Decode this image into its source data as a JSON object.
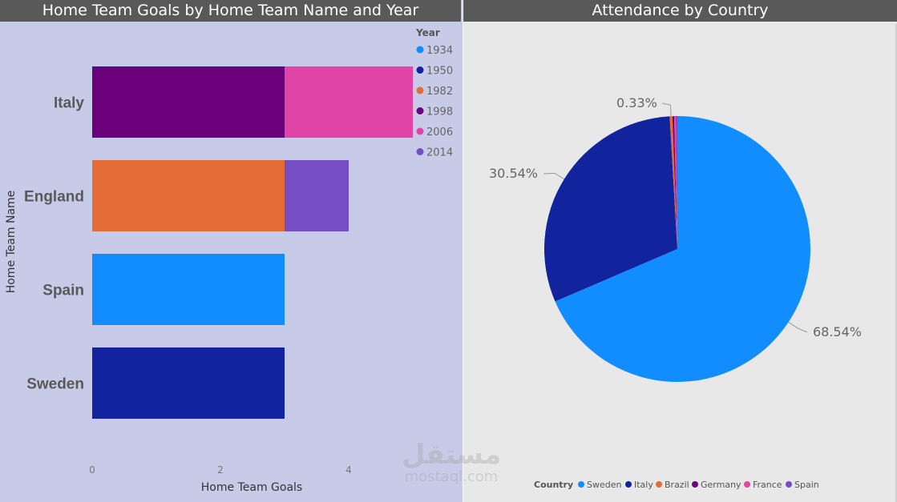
{
  "chart_data": [
    {
      "type": "bar",
      "orientation": "horizontal",
      "stacked": true,
      "title": "Home Team Goals by Home Team Name and Year",
      "xlabel": "Home Team Goals",
      "ylabel": "Home Team Name",
      "categories": [
        "Italy",
        "England",
        "Spain",
        "Sweden"
      ],
      "x_ticks": [
        "0",
        "2",
        "4"
      ],
      "xlim": [
        0,
        5.1
      ],
      "legend_title": "Year",
      "legend_position": "top-right",
      "series": [
        {
          "name": "1934",
          "color": "#118dff",
          "values": [
            0,
            0,
            3,
            0
          ]
        },
        {
          "name": "1950",
          "color": "#12239e",
          "values": [
            0,
            0,
            0,
            3
          ]
        },
        {
          "name": "1982",
          "color": "#e66c37",
          "values": [
            0,
            3,
            0,
            0
          ]
        },
        {
          "name": "1998",
          "color": "#6b007b",
          "values": [
            3,
            0,
            0,
            0
          ]
        },
        {
          "name": "2006",
          "color": "#e044a7",
          "values": [
            2,
            0,
            0,
            0
          ]
        },
        {
          "name": "2014",
          "color": "#744ec2",
          "values": [
            0,
            1,
            0,
            0
          ]
        }
      ]
    },
    {
      "type": "pie",
      "title": "Attendance by Country",
      "legend_title": "Country",
      "legend_position": "bottom",
      "slices": [
        {
          "name": "Sweden",
          "color": "#118dff",
          "value": 68.54,
          "label": "68.54%"
        },
        {
          "name": "Italy",
          "color": "#12239e",
          "value": 30.54,
          "label": "30.54%"
        },
        {
          "name": "Brazil",
          "color": "#e66c37",
          "value": 0.33,
          "label": "0.33%"
        },
        {
          "name": "Germany",
          "color": "#6b007b",
          "value": 0.2,
          "label": ""
        },
        {
          "name": "France",
          "color": "#e044a7",
          "value": 0.2,
          "label": ""
        },
        {
          "name": "Spain",
          "color": "#744ec2",
          "value": 0.19,
          "label": ""
        }
      ]
    }
  ],
  "watermark": {
    "main": "مستقل",
    "sub": "mostaql.com"
  }
}
